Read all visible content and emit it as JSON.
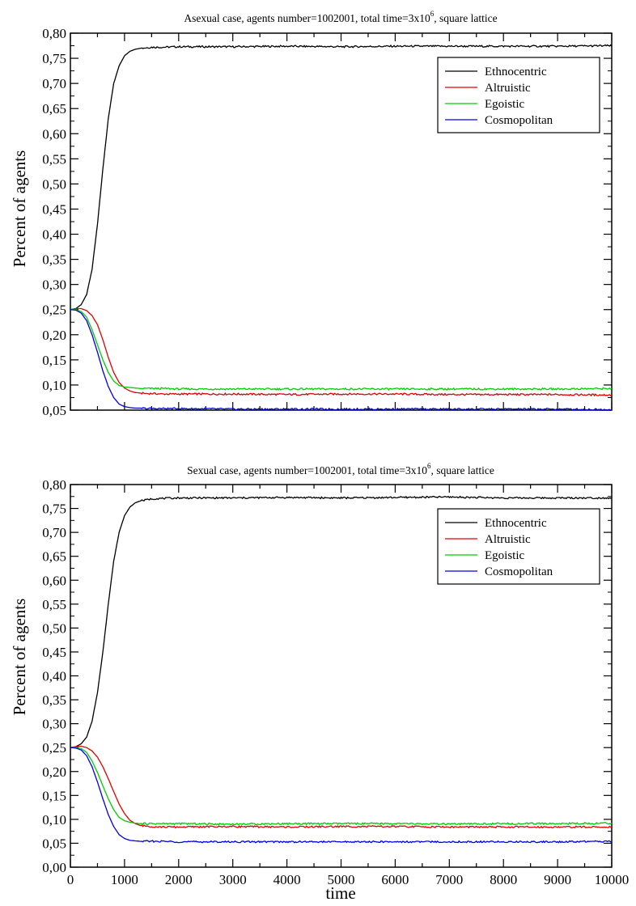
{
  "colors": {
    "ethnocentric": "#000000",
    "altruistic": "#e00000",
    "egoistic": "#00cc00",
    "cosmopolitan": "#0000dd",
    "frame": "#000000"
  },
  "chart_data": [
    {
      "type": "line",
      "title_main": "Asexual case, agents number=1002001, total time=3x10",
      "title_sup": "6",
      "title_tail": ", square lattice",
      "xlabel": "",
      "ylabel": "Percent of agents",
      "xlim": [
        0,
        10000
      ],
      "ylim": [
        0.05,
        0.8
      ],
      "yticks": [
        "0,05",
        "0,10",
        "0,15",
        "0,20",
        "0,25",
        "0,30",
        "0,35",
        "0,40",
        "0,45",
        "0,50",
        "0,55",
        "0,60",
        "0,65",
        "0,70",
        "0,75",
        "0,80"
      ],
      "xticks": [],
      "legend": [
        "Ethnocentric",
        "Altruistic",
        "Egoistic",
        "Cosmopolitan"
      ],
      "legend_position": "top-right",
      "x": [
        0,
        100,
        200,
        300,
        400,
        500,
        600,
        700,
        800,
        900,
        1000,
        1100,
        1200,
        1300,
        1400,
        1500,
        1700,
        2000,
        3000,
        4000,
        5000,
        6000,
        7000,
        8000,
        9000,
        10000
      ],
      "series": [
        {
          "name": "Ethnocentric",
          "color_key": "ethnocentric",
          "values": [
            0.25,
            0.252,
            0.26,
            0.28,
            0.33,
            0.42,
            0.53,
            0.63,
            0.7,
            0.735,
            0.755,
            0.764,
            0.768,
            0.77,
            0.771,
            0.772,
            0.772,
            0.773,
            0.773,
            0.774,
            0.773,
            0.774,
            0.774,
            0.774,
            0.774,
            0.775
          ]
        },
        {
          "name": "Altruistic",
          "color_key": "altruistic",
          "values": [
            0.25,
            0.252,
            0.252,
            0.248,
            0.238,
            0.22,
            0.19,
            0.155,
            0.125,
            0.105,
            0.094,
            0.088,
            0.085,
            0.084,
            0.083,
            0.083,
            0.082,
            0.082,
            0.082,
            0.081,
            0.082,
            0.082,
            0.081,
            0.081,
            0.081,
            0.08
          ]
        },
        {
          "name": "Egoistic",
          "color_key": "egoistic",
          "values": [
            0.25,
            0.25,
            0.246,
            0.235,
            0.21,
            0.18,
            0.15,
            0.125,
            0.108,
            0.099,
            0.096,
            0.095,
            0.094,
            0.093,
            0.093,
            0.093,
            0.093,
            0.092,
            0.092,
            0.092,
            0.092,
            0.092,
            0.092,
            0.092,
            0.092,
            0.093
          ]
        },
        {
          "name": "Cosmopolitan",
          "color_key": "cosmopolitan",
          "values": [
            0.25,
            0.249,
            0.243,
            0.228,
            0.2,
            0.165,
            0.128,
            0.097,
            0.075,
            0.062,
            0.057,
            0.055,
            0.054,
            0.054,
            0.053,
            0.053,
            0.053,
            0.053,
            0.052,
            0.052,
            0.052,
            0.052,
            0.052,
            0.052,
            0.052,
            0.051
          ]
        }
      ]
    },
    {
      "type": "line",
      "title_main": "Sexual case, agents number=1002001, total time=3x10",
      "title_sup": "6",
      "title_tail": ", square lattice",
      "xlabel": "time",
      "ylabel": "Percent of agents",
      "xlim": [
        0,
        10000
      ],
      "ylim": [
        0.0,
        0.8
      ],
      "yticks": [
        "0,00",
        "0,05",
        "0,10",
        "0,15",
        "0,20",
        "0,25",
        "0,30",
        "0,35",
        "0,40",
        "0,45",
        "0,50",
        "0,55",
        "0,60",
        "0,65",
        "0,70",
        "0,75",
        "0,80"
      ],
      "xticks": [
        "0",
        "1000",
        "2000",
        "3000",
        "4000",
        "5000",
        "6000",
        "7000",
        "8000",
        "9000",
        "10000"
      ],
      "legend": [
        "Ethnocentric",
        "Altruistic",
        "Egoistic",
        "Cosmopolitan"
      ],
      "legend_position": "top-right",
      "x": [
        0,
        100,
        200,
        300,
        400,
        500,
        600,
        700,
        800,
        900,
        1000,
        1100,
        1200,
        1300,
        1400,
        1500,
        1700,
        2000,
        3000,
        4000,
        5000,
        6000,
        7000,
        8000,
        9000,
        10000
      ],
      "series": [
        {
          "name": "Ethnocentric",
          "color_key": "ethnocentric",
          "values": [
            0.25,
            0.252,
            0.258,
            0.272,
            0.305,
            0.365,
            0.45,
            0.55,
            0.64,
            0.7,
            0.735,
            0.753,
            0.762,
            0.766,
            0.768,
            0.77,
            0.771,
            0.772,
            0.772,
            0.773,
            0.772,
            0.773,
            0.774,
            0.772,
            0.772,
            0.772
          ]
        },
        {
          "name": "Altruistic",
          "color_key": "altruistic",
          "values": [
            0.25,
            0.252,
            0.253,
            0.25,
            0.243,
            0.23,
            0.21,
            0.185,
            0.158,
            0.132,
            0.112,
            0.098,
            0.091,
            0.087,
            0.086,
            0.085,
            0.084,
            0.084,
            0.085,
            0.084,
            0.085,
            0.085,
            0.084,
            0.084,
            0.084,
            0.084
          ]
        },
        {
          "name": "Egoistic",
          "color_key": "egoistic",
          "values": [
            0.25,
            0.25,
            0.248,
            0.24,
            0.222,
            0.198,
            0.17,
            0.143,
            0.12,
            0.104,
            0.097,
            0.094,
            0.092,
            0.091,
            0.091,
            0.091,
            0.091,
            0.091,
            0.09,
            0.091,
            0.091,
            0.091,
            0.09,
            0.091,
            0.091,
            0.092
          ]
        },
        {
          "name": "Cosmopolitan",
          "color_key": "cosmopolitan",
          "values": [
            0.25,
            0.249,
            0.245,
            0.233,
            0.21,
            0.178,
            0.143,
            0.11,
            0.085,
            0.068,
            0.06,
            0.056,
            0.055,
            0.054,
            0.054,
            0.054,
            0.054,
            0.053,
            0.053,
            0.053,
            0.053,
            0.053,
            0.053,
            0.053,
            0.053,
            0.054
          ]
        }
      ]
    }
  ]
}
